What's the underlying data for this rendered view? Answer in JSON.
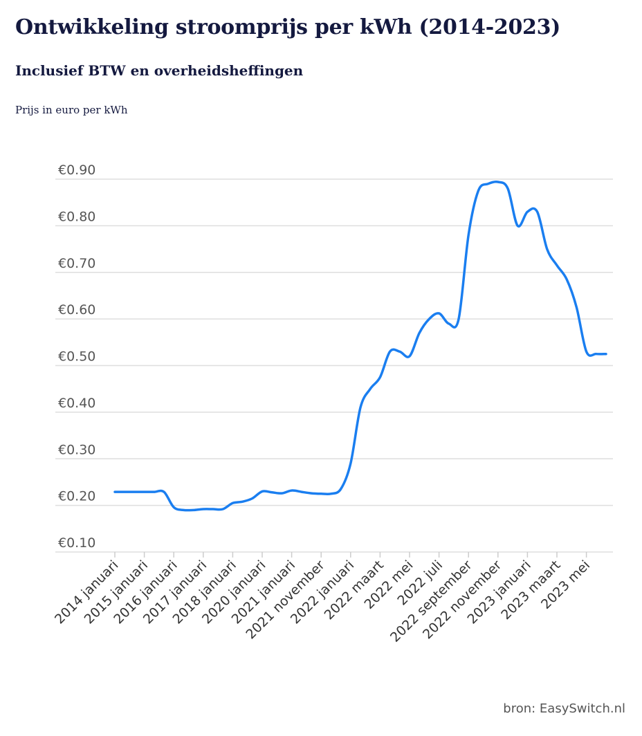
{
  "chart_data": {
    "type": "line",
    "title": "Ontwikkeling stroomprijs per kWh (2014-2023)",
    "subtitle": "Inclusief BTW en overheidsheffingen",
    "ylabel": "Prijs in euro per kWh",
    "xlabel": "",
    "source": "bron: EasySwitch.nl",
    "ylim": [
      0.1,
      0.9
    ],
    "y_ticks": [
      "€0.10",
      "€0.20",
      "€0.30",
      "€0.40",
      "€0.50",
      "€0.60",
      "€0.70",
      "€0.80",
      "€0.90"
    ],
    "y_tick_values": [
      0.1,
      0.2,
      0.3,
      0.4,
      0.5,
      0.6,
      0.7,
      0.8,
      0.9
    ],
    "grid": true,
    "line_color": "#1a7ef0",
    "x_tick_labels": [
      "2014 januari",
      "2015 januari",
      "2016 januari",
      "2017 januari",
      "2018 januari",
      "2020 januari",
      "2021 januari",
      "2021 november",
      "2022 januari",
      "2022 maart",
      "2022 mei",
      "2022 juli",
      "2022 september",
      "2022 november",
      "2023 januari",
      "2023 maart",
      "2023 mei"
    ],
    "tick_positions": [
      0,
      3,
      6,
      9,
      12,
      15,
      18,
      21,
      24,
      27,
      30,
      33,
      36,
      39,
      42,
      45,
      48
    ],
    "series": [
      {
        "values": [
          0.229,
          0.229,
          0.229,
          0.229,
          0.229,
          0.229,
          0.196,
          0.19,
          0.19,
          0.192,
          0.192,
          0.192,
          0.205,
          0.208,
          0.215,
          0.23,
          0.228,
          0.226,
          0.232,
          0.229,
          0.226,
          0.225,
          0.225,
          0.235,
          0.29,
          0.41,
          0.45,
          0.475,
          0.53,
          0.53,
          0.52,
          0.57,
          0.6,
          0.612,
          0.59,
          0.6,
          0.78,
          0.875,
          0.89,
          0.894,
          0.88,
          0.8,
          0.83,
          0.83,
          0.75,
          0.715,
          0.685,
          0.625,
          0.53,
          0.525,
          0.525
        ]
      }
    ]
  }
}
